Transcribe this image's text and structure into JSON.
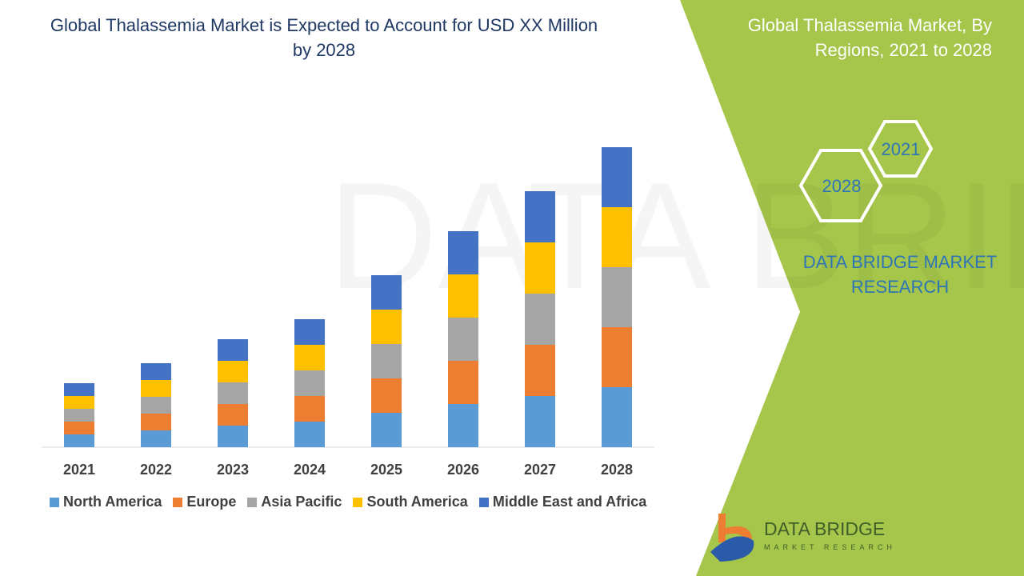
{
  "title": "Global Thalassemia Market is Expected to Account for USD XX Million by 2028",
  "side_panel": {
    "title": "Global Thalassemia Market, By Regions, 2021 to 2028",
    "hex_labels": [
      "2021",
      "2028"
    ],
    "brand": "DATA BRIDGE MARKET RESEARCH",
    "logo_text": "DATA BRIDGE",
    "logo_sub": "MARKET RESEARCH",
    "color": "#a5c64a"
  },
  "chart_data": {
    "type": "bar",
    "stacked": true,
    "categories": [
      "2021",
      "2022",
      "2023",
      "2024",
      "2025",
      "2026",
      "2027",
      "2028"
    ],
    "series": [
      {
        "name": "North America",
        "color": "#5b9bd5",
        "values": [
          16,
          21,
          27,
          32,
          43,
          54,
          64,
          75
        ]
      },
      {
        "name": "Europe",
        "color": "#ed7d31",
        "values": [
          16,
          21,
          27,
          32,
          43,
          54,
          64,
          75
        ]
      },
      {
        "name": "Asia Pacific",
        "color": "#a5a5a5",
        "values": [
          16,
          21,
          27,
          32,
          43,
          54,
          64,
          75
        ]
      },
      {
        "name": "South America",
        "color": "#ffc000",
        "values": [
          16,
          21,
          27,
          32,
          43,
          54,
          64,
          75
        ]
      },
      {
        "name": "Middle East and Africa",
        "color": "#4472c4",
        "values": [
          16,
          21,
          27,
          32,
          43,
          54,
          64,
          75
        ]
      }
    ],
    "legend": "bottom",
    "grid": false,
    "y_axis_visible": false
  }
}
